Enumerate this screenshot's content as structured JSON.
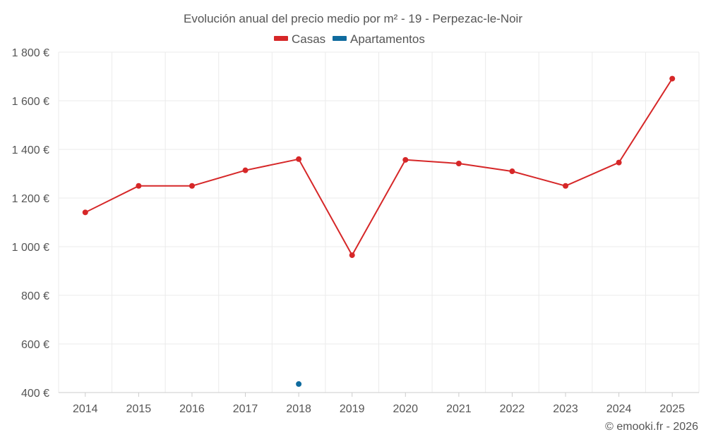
{
  "chart_data": {
    "type": "line",
    "title": "Evolución anual del precio medio por m² - 19 - Perpezac-le-Noir",
    "categories": [
      "2014",
      "2015",
      "2016",
      "2017",
      "2018",
      "2019",
      "2020",
      "2021",
      "2022",
      "2023",
      "2024",
      "2025"
    ],
    "series": [
      {
        "name": "Casas",
        "color": "#d62728",
        "values": [
          1141,
          1250,
          1250,
          1314,
          1360,
          965,
          1357,
          1342,
          1310,
          1250,
          1346,
          1691
        ]
      },
      {
        "name": "Apartamentos",
        "color": "#0f6b9e",
        "values": [
          null,
          null,
          null,
          null,
          435,
          null,
          null,
          null,
          null,
          null,
          null,
          null
        ]
      }
    ],
    "ylim": [
      400,
      1800
    ],
    "yticks": [
      400,
      600,
      800,
      1000,
      1200,
      1400,
      1600,
      1800
    ],
    "ytick_labels": [
      "400 €",
      "600 €",
      "800 €",
      "1 000 €",
      "1 200 €",
      "1 400 €",
      "1 600 €",
      "1 800 €"
    ],
    "xlabel": "",
    "ylabel": "",
    "grid": true,
    "legend_position": "top-center"
  },
  "credit": "© emooki.fr - 2026"
}
